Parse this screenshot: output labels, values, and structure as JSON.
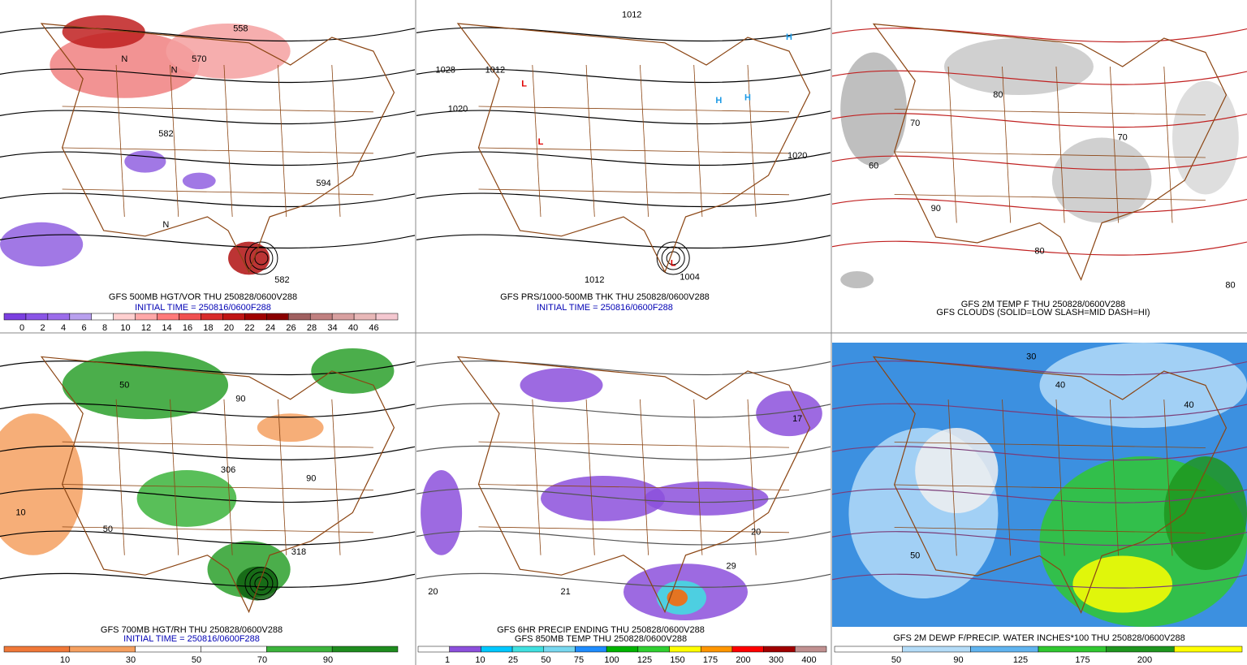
{
  "panels": [
    {
      "caption": [
        "GFS 500MB HGT/VOR THU 250828/0600V288",
        "INITIAL TIME = 250816/0600F288"
      ],
      "colorbar": [
        0,
        2,
        4,
        6,
        8,
        10,
        12,
        14,
        16,
        18,
        20,
        22,
        24,
        26,
        28,
        34,
        40,
        46
      ],
      "map_labels": [
        "558",
        "570",
        "582",
        "594",
        "582",
        "N",
        "N",
        "N"
      ]
    },
    {
      "caption": [
        "GFS PRS/1000-500MB THK THU 250828/0600V288",
        "INITIAL TIME = 250816/0600F288"
      ],
      "map_labels": [
        "1012",
        "1028",
        "1020",
        "1012",
        "1012",
        "1004",
        "1020",
        "H",
        "H",
        "H",
        "L",
        "L",
        "L"
      ]
    },
    {
      "caption": [
        "GFS 2M TEMP F THU 250828/0600V288",
        "GFS CLOUDS (SOLID=LOW SLASH=MID DASH=HI)"
      ],
      "map_labels": [
        "70",
        "80",
        "90",
        "60",
        "80",
        "70",
        "80"
      ]
    },
    {
      "caption": [
        "GFS 700MB HGT/RH THU 250828/0600V288",
        "INITIAL TIME = 250816/0600F288"
      ],
      "colorbar": [
        10,
        30,
        50,
        70,
        90
      ],
      "map_labels": [
        "50",
        "90",
        "10",
        "306",
        "318",
        "50",
        "90"
      ]
    },
    {
      "caption": [
        "GFS 6HR PRECIP ENDING THU 250828/0600V288",
        "GFS 850MB TEMP THU 250828/0600V288"
      ],
      "colorbar": [
        1,
        10,
        25,
        50,
        75,
        100,
        125,
        150,
        175,
        200,
        300,
        400
      ],
      "map_labels": [
        "20",
        "21",
        "29",
        "20",
        "17"
      ]
    },
    {
      "caption": [
        "GFS 2M DEWP F/PRECIP. WATER INCHES*100 THU 250828/0600V288"
      ],
      "colorbar": [
        50,
        90,
        125,
        175,
        200
      ],
      "map_labels": [
        "30",
        "40",
        "50",
        "40"
      ]
    }
  ]
}
